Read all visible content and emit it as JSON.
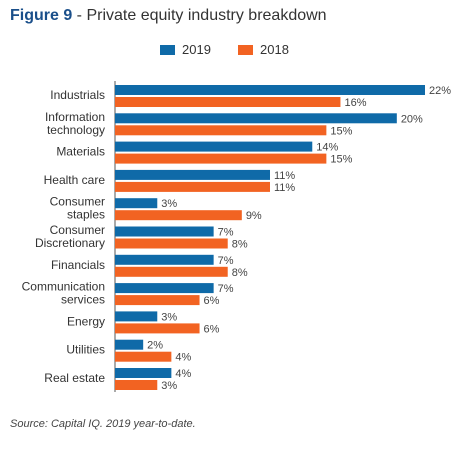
{
  "figure": {
    "title_bold": "Figure 9",
    "title_rest": " - Private equity industry breakdown",
    "source": "Source: Capital IQ. 2019 year-to-date."
  },
  "colors": {
    "series_2019": "#0f6aa8",
    "series_2018": "#f26322",
    "axis": "#555555"
  },
  "chart_data": {
    "type": "bar",
    "orientation": "horizontal",
    "categories": [
      [
        "Industrials"
      ],
      [
        "Information",
        "technology"
      ],
      [
        "Materials"
      ],
      [
        "Health care"
      ],
      [
        "Consumer",
        "staples"
      ],
      [
        "Consumer",
        "Discretionary"
      ],
      [
        "Financials"
      ],
      [
        "Communication",
        "services"
      ],
      [
        "Energy"
      ],
      [
        "Utilities"
      ],
      [
        "Real estate"
      ]
    ],
    "series": [
      {
        "name": "2019",
        "values": [
          22,
          20,
          14,
          11,
          3,
          7,
          7,
          7,
          3,
          2,
          4
        ]
      },
      {
        "name": "2018",
        "values": [
          16,
          15,
          15,
          11,
          9,
          8,
          8,
          6,
          6,
          4,
          3
        ]
      }
    ],
    "value_suffix": "%",
    "xlim": [
      0,
      22
    ],
    "legend": "top-center",
    "grid": false
  }
}
